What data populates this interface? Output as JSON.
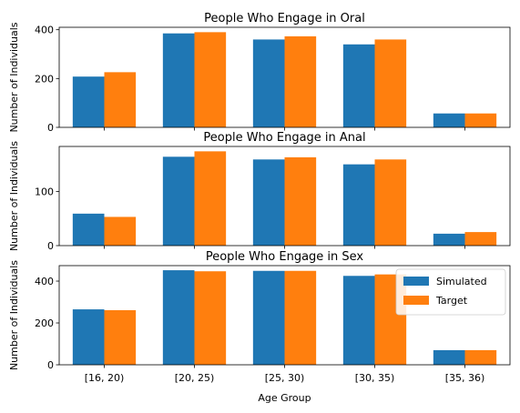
{
  "chart_data": [
    {
      "type": "bar",
      "title": "People Who Engage in Oral",
      "ylabel": "Number of Individuals",
      "xlabel": "",
      "categories": [
        "[16, 20)",
        "[20, 25)",
        "[25, 30)",
        "[30, 35)",
        "[35, 36)"
      ],
      "series": [
        {
          "name": "Simulated",
          "color": "#1f77b4",
          "values": [
            208,
            385,
            360,
            340,
            57
          ]
        },
        {
          "name": "Target",
          "color": "#ff7f0e",
          "values": [
            226,
            390,
            373,
            360,
            57
          ]
        }
      ],
      "ylim": [
        0,
        410
      ],
      "yticks": [
        0,
        200,
        400
      ],
      "show_xtick_labels": false,
      "legend": false,
      "grid": false
    },
    {
      "type": "bar",
      "title": "People Who Engage in Anal",
      "ylabel": "Number of Individuals",
      "xlabel": "",
      "categories": [
        "[16, 20)",
        "[20, 25)",
        "[25, 30)",
        "[30, 35)",
        "[35, 36)"
      ],
      "series": [
        {
          "name": "Simulated",
          "color": "#1f77b4",
          "values": [
            59,
            164,
            159,
            150,
            22
          ]
        },
        {
          "name": "Target",
          "color": "#ff7f0e",
          "values": [
            53,
            174,
            163,
            159,
            25
          ]
        }
      ],
      "ylim": [
        0,
        183
      ],
      "yticks": [
        0,
        100
      ],
      "show_xtick_labels": false,
      "legend": false,
      "grid": false
    },
    {
      "type": "bar",
      "title": "People Who Engage in Sex",
      "ylabel": "Number of Individuals",
      "xlabel": "Age Group",
      "categories": [
        "[16, 20)",
        "[20, 25)",
        "[25, 30)",
        "[30, 35)",
        "[35, 36)"
      ],
      "series": [
        {
          "name": "Simulated",
          "color": "#1f77b4",
          "values": [
            265,
            452,
            449,
            425,
            70
          ]
        },
        {
          "name": "Target",
          "color": "#ff7f0e",
          "values": [
            261,
            447,
            449,
            432,
            70
          ]
        }
      ],
      "ylim": [
        0,
        474
      ],
      "yticks": [
        0,
        200,
        400
      ],
      "show_xtick_labels": true,
      "legend": true,
      "legend_position": "upper-right",
      "grid": false
    }
  ]
}
